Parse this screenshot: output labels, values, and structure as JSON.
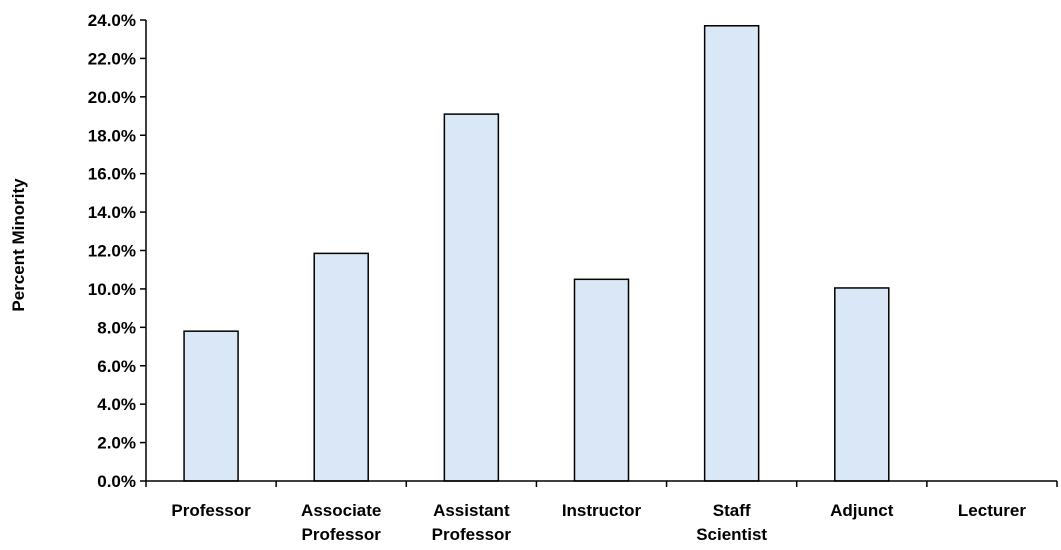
{
  "chart_data": {
    "type": "bar",
    "categories": [
      [
        "Professor"
      ],
      [
        "Associate",
        "Professor"
      ],
      [
        "Assistant",
        "Professor"
      ],
      [
        "Instructor"
      ],
      [
        "Staff",
        "Scientist"
      ],
      [
        "Adjunct"
      ],
      [
        "Lecturer"
      ]
    ],
    "values": [
      7.8,
      11.85,
      19.1,
      10.5,
      23.7,
      10.05,
      0
    ],
    "ylabel": "Percent  Minority",
    "ylim": [
      0,
      24
    ],
    "ytick_step": 2,
    "ytick_format": "percent_1dp",
    "grid": false,
    "colors": {
      "bar_fill": "#dae7f7",
      "bar_stroke": "#000000"
    }
  }
}
